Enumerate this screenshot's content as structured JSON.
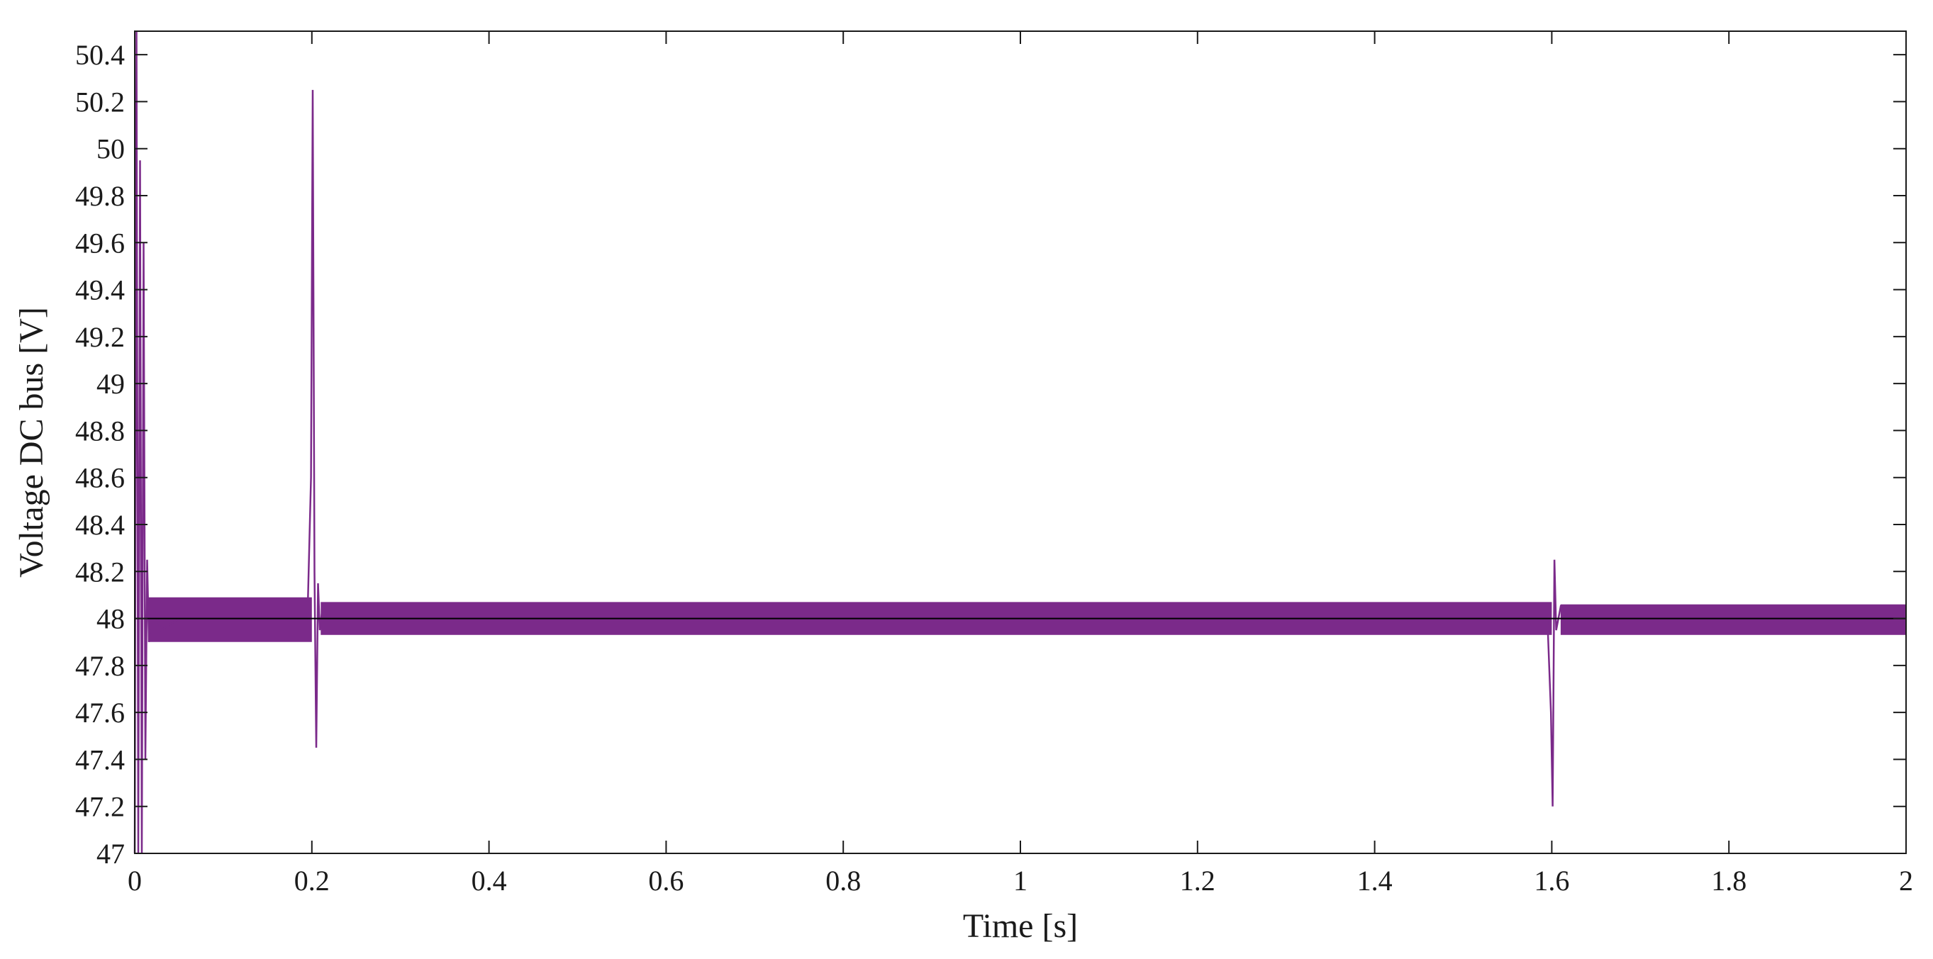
{
  "chart_data": {
    "type": "line",
    "title": "",
    "xlabel": "Time [s]",
    "ylabel": "Voltage DC  bus [V]",
    "xlim": [
      0,
      2
    ],
    "ylim": [
      47,
      50.5
    ],
    "xticks": [
      0,
      0.2,
      0.4,
      0.6,
      0.8,
      1,
      1.2,
      1.4,
      1.6,
      1.8,
      2
    ],
    "xtick_labels": [
      "0",
      "0.2",
      "0.4",
      "0.6",
      "0.8",
      "1",
      "1.2",
      "1.4",
      "1.6",
      "1.8",
      "2"
    ],
    "yticks": [
      47,
      47.2,
      47.4,
      47.6,
      47.8,
      48,
      48.2,
      48.4,
      48.6,
      48.8,
      49,
      49.2,
      49.4,
      49.6,
      49.8,
      50,
      50.2,
      50.4
    ],
    "ytick_labels": [
      "47",
      "47.2",
      "47.4",
      "47.6",
      "47.8",
      "48",
      "48.2",
      "48.4",
      "48.6",
      "48.8",
      "49",
      "49.2",
      "49.4",
      "49.6",
      "49.8",
      "50",
      "50.2",
      "50.4"
    ],
    "grid": false,
    "legend": "none",
    "series": [
      {
        "color": "#7b2a8a",
        "description_points": {
          "x": [
            0,
            0.002,
            0.004,
            0.006,
            0.008,
            0.01,
            0.012,
            0.014,
            0.016,
            0.02,
            0.03,
            0.05,
            0.1,
            0.15,
            0.195,
            0.199,
            0.201,
            0.203,
            0.205,
            0.207,
            0.209,
            0.212,
            0.22,
            0.3,
            0.6,
            1.0,
            1.4,
            1.595,
            1.599,
            1.601,
            1.603,
            1.605,
            1.61,
            1.62,
            1.8,
            2.0
          ],
          "y": [
            47.0,
            50.5,
            47.0,
            49.95,
            47.0,
            49.6,
            47.4,
            48.25,
            47.9,
            48.05,
            47.95,
            48.0,
            48.0,
            48.0,
            48.0,
            48.6,
            50.25,
            48.2,
            47.45,
            48.15,
            47.95,
            48.05,
            48.0,
            48.0,
            48.0,
            48.0,
            48.0,
            48.0,
            47.6,
            47.2,
            48.25,
            47.95,
            48.05,
            48.0,
            48.0,
            48.0
          ]
        },
        "ripple_band": [
          {
            "x_from": 0.015,
            "x_to": 0.2,
            "y_min": 47.9,
            "y_max": 48.09
          },
          {
            "x_from": 0.21,
            "x_to": 1.6,
            "y_min": 47.93,
            "y_max": 48.07
          },
          {
            "x_from": 1.61,
            "x_to": 2.0,
            "y_min": 47.93,
            "y_max": 48.06
          }
        ]
      },
      {
        "color": "#000000",
        "x": [
          0,
          2
        ],
        "y": [
          48,
          48
        ]
      }
    ]
  }
}
